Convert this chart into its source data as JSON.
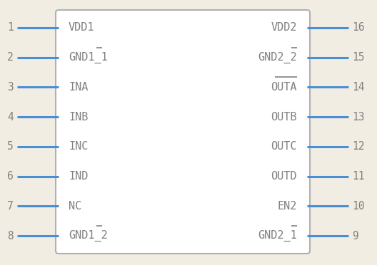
{
  "bg_color": "#f2ede3",
  "body_edge_color": "#b0b0b0",
  "body_fill": "#ffffff",
  "pin_color": "#4a8fd4",
  "text_color": "#808080",
  "pin_number_color": "#808080",
  "left_pins": [
    {
      "num": 1,
      "label": "VDD1",
      "overline": false,
      "overline_chars": 0
    },
    {
      "num": 2,
      "label": "GND1_1",
      "overline": true,
      "overline_chars": 1
    },
    {
      "num": 3,
      "label": "INA",
      "overline": false,
      "overline_chars": 0
    },
    {
      "num": 4,
      "label": "INB",
      "overline": false,
      "overline_chars": 0
    },
    {
      "num": 5,
      "label": "INC",
      "overline": false,
      "overline_chars": 0
    },
    {
      "num": 6,
      "label": "IND",
      "overline": false,
      "overline_chars": 0
    },
    {
      "num": 7,
      "label": "NC",
      "overline": false,
      "overline_chars": 0
    },
    {
      "num": 8,
      "label": "GND1_2",
      "overline": true,
      "overline_chars": 1
    }
  ],
  "right_pins": [
    {
      "num": 16,
      "label": "VDD2",
      "overline": false,
      "overline_chars": 0
    },
    {
      "num": 15,
      "label": "GND2_2",
      "overline": true,
      "overline_chars": 1
    },
    {
      "num": 14,
      "label": "OUTA",
      "overline": true,
      "overline_chars": 4
    },
    {
      "num": 13,
      "label": "OUTB",
      "overline": false,
      "overline_chars": 0
    },
    {
      "num": 12,
      "label": "OUTC",
      "overline": false,
      "overline_chars": 0
    },
    {
      "num": 11,
      "label": "OUTD",
      "overline": false,
      "overline_chars": 0
    },
    {
      "num": 10,
      "label": "EN2",
      "overline": false,
      "overline_chars": 0
    },
    {
      "num": 9,
      "label": "GND2_1",
      "overline": true,
      "overline_chars": 1
    }
  ],
  "font_size_label": 11,
  "font_size_num": 10.5,
  "pin_lw": 2.2
}
